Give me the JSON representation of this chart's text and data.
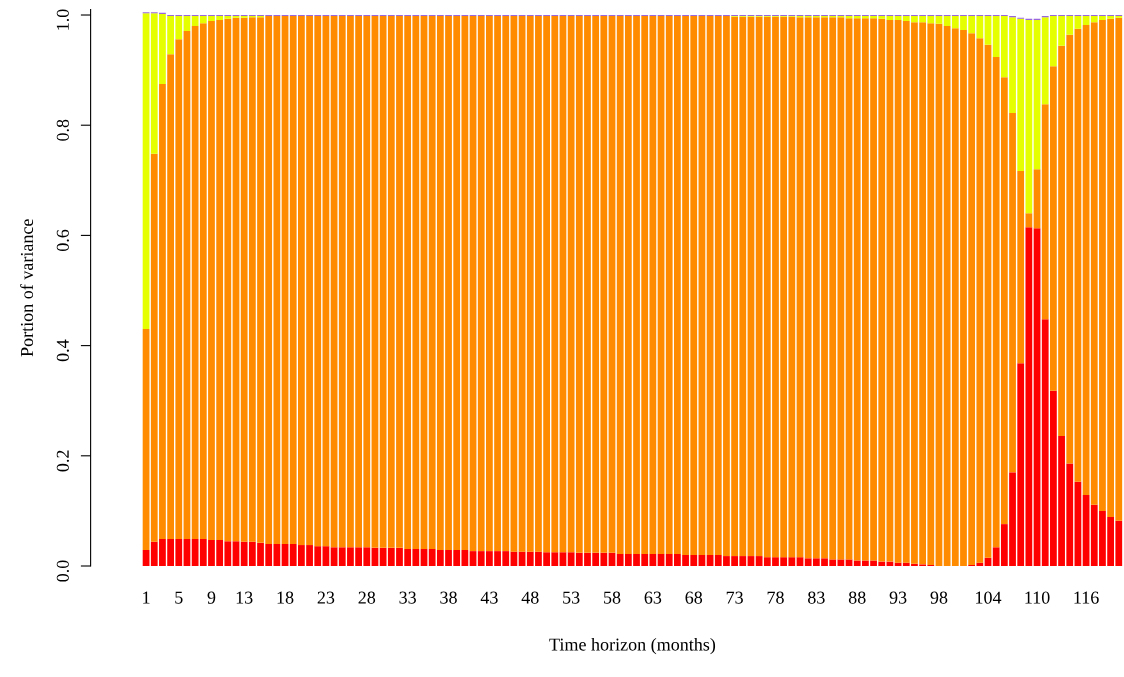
{
  "chart_data": {
    "type": "bar",
    "stacked": true,
    "xlabel": "Time horizon (months)",
    "ylabel": "Portion of variance",
    "categories": [
      "1",
      null,
      null,
      null,
      "5",
      null,
      null,
      null,
      "9",
      null,
      null,
      null,
      "13",
      null,
      null,
      null,
      null,
      "18",
      null,
      null,
      null,
      null,
      "23",
      null,
      null,
      null,
      null,
      "28",
      null,
      null,
      null,
      null,
      "33",
      null,
      null,
      null,
      null,
      "38",
      null,
      null,
      null,
      null,
      "43",
      null,
      null,
      null,
      null,
      "48",
      null,
      null,
      null,
      null,
      "53",
      null,
      null,
      null,
      null,
      "58",
      null,
      null,
      null,
      null,
      "63",
      null,
      null,
      null,
      null,
      "68",
      null,
      null,
      null,
      null,
      "73",
      null,
      null,
      null,
      null,
      "78",
      null,
      null,
      null,
      null,
      "83",
      null,
      null,
      null,
      null,
      "88",
      null,
      null,
      null,
      null,
      "93",
      null,
      null,
      null,
      null,
      "98",
      null,
      null,
      null,
      null,
      null,
      "104",
      null,
      null,
      null,
      null,
      null,
      "110",
      null,
      null,
      null,
      null,
      null,
      "116",
      null,
      null,
      null,
      null
    ],
    "series": [
      {
        "color": "#ff0000",
        "values": [
          0.029,
          0.044,
          0.049,
          0.049,
          0.049,
          0.049,
          0.049,
          0.049,
          0.047,
          0.047,
          0.045,
          0.045,
          0.044,
          0.044,
          0.042,
          0.04,
          0.04,
          0.04,
          0.04,
          0.038,
          0.038,
          0.036,
          0.036,
          0.034,
          0.034,
          0.034,
          0.034,
          0.034,
          0.033,
          0.033,
          0.033,
          0.033,
          0.031,
          0.031,
          0.031,
          0.031,
          0.029,
          0.029,
          0.029,
          0.029,
          0.027,
          0.027,
          0.027,
          0.027,
          0.027,
          0.026,
          0.026,
          0.026,
          0.026,
          0.025,
          0.025,
          0.025,
          0.025,
          0.024,
          0.024,
          0.024,
          0.024,
          0.024,
          0.022,
          0.022,
          0.022,
          0.022,
          0.022,
          0.022,
          0.022,
          0.022,
          0.02,
          0.02,
          0.02,
          0.02,
          0.02,
          0.018,
          0.018,
          0.018,
          0.018,
          0.018,
          0.016,
          0.016,
          0.016,
          0.016,
          0.016,
          0.014,
          0.014,
          0.014,
          0.012,
          0.012,
          0.012,
          0.01,
          0.01,
          0.01,
          0.008,
          0.008,
          0.006,
          0.006,
          0.004,
          0.003,
          0.002,
          0,
          0,
          0,
          0,
          0.002,
          0.006,
          0.015,
          0.034,
          0.076,
          0.17,
          0.368,
          0.615,
          0.613,
          0.448,
          0.318,
          0.236,
          0.186,
          0.153,
          0.129,
          0.111,
          0.1,
          0.089,
          0.082
        ]
      },
      {
        "color": "#ff8c00",
        "values": [
          0.401,
          0.704,
          0.826,
          0.88,
          0.907,
          0.922,
          0.931,
          0.936,
          0.942,
          0.944,
          0.948,
          0.95,
          0.951,
          0.952,
          0.954,
          0.958,
          0.958,
          0.958,
          0.958,
          0.96,
          0.96,
          0.962,
          0.962,
          0.964,
          0.964,
          0.964,
          0.964,
          0.964,
          0.965,
          0.965,
          0.965,
          0.965,
          0.967,
          0.967,
          0.967,
          0.967,
          0.969,
          0.969,
          0.969,
          0.969,
          0.971,
          0.971,
          0.971,
          0.971,
          0.971,
          0.972,
          0.972,
          0.972,
          0.972,
          0.973,
          0.973,
          0.973,
          0.973,
          0.974,
          0.974,
          0.974,
          0.974,
          0.974,
          0.976,
          0.976,
          0.976,
          0.976,
          0.976,
          0.976,
          0.976,
          0.976,
          0.978,
          0.978,
          0.978,
          0.978,
          0.978,
          0.98,
          0.979,
          0.979,
          0.979,
          0.979,
          0.981,
          0.981,
          0.981,
          0.981,
          0.98,
          0.982,
          0.982,
          0.982,
          0.984,
          0.984,
          0.982,
          0.984,
          0.984,
          0.984,
          0.985,
          0.983,
          0.985,
          0.983,
          0.983,
          0.984,
          0.983,
          0.984,
          0.98,
          0.976,
          0.973,
          0.965,
          0.952,
          0.931,
          0.89,
          0.811,
          0.652,
          0.349,
          0.025,
          0.107,
          0.39,
          0.589,
          0.708,
          0.778,
          0.822,
          0.853,
          0.876,
          0.891,
          0.904,
          0.913
        ]
      },
      {
        "color": "#e6ff00",
        "values": [
          0.573,
          0.255,
          0.127,
          0.069,
          0.042,
          0.027,
          0.018,
          0.013,
          0.009,
          0.007,
          0.005,
          0.003,
          0.003,
          0.002,
          0.002,
          0,
          0,
          0,
          0,
          0,
          0,
          0,
          0,
          0,
          0,
          0,
          0,
          0,
          0,
          0,
          0,
          0,
          0,
          0,
          0,
          0,
          0,
          0,
          0,
          0,
          0,
          0,
          0,
          0,
          0,
          0,
          0,
          0,
          0,
          0,
          0,
          0,
          0,
          0,
          0,
          0,
          0,
          0,
          0,
          0,
          0,
          0,
          0,
          0,
          0,
          0,
          0,
          0,
          0,
          0,
          0,
          0,
          0.001,
          0.001,
          0.001,
          0.001,
          0.001,
          0.001,
          0.001,
          0.001,
          0.002,
          0.002,
          0.002,
          0.002,
          0.002,
          0.002,
          0.004,
          0.004,
          0.004,
          0.004,
          0.005,
          0.007,
          0.007,
          0.009,
          0.011,
          0.011,
          0.013,
          0.014,
          0.018,
          0.022,
          0.025,
          0.031,
          0.04,
          0.052,
          0.074,
          0.111,
          0.174,
          0.276,
          0.351,
          0.271,
          0.158,
          0.091,
          0.054,
          0.034,
          0.023,
          0.016,
          0.011,
          0.007,
          0.005,
          0.003
        ]
      },
      {
        "color": "#9966dd",
        "values": [
          0.002,
          0.002,
          0.002,
          0.002,
          0.002,
          0.002,
          0.002,
          0.002,
          0.002,
          0.002,
          0.002,
          0.002,
          0.002,
          0.002,
          0.002,
          0.002,
          0.002,
          0.002,
          0.002,
          0.002,
          0.002,
          0.002,
          0.002,
          0.002,
          0.002,
          0.002,
          0.002,
          0.002,
          0.002,
          0.002,
          0.002,
          0.002,
          0.002,
          0.002,
          0.002,
          0.002,
          0.002,
          0.002,
          0.002,
          0.002,
          0.002,
          0.002,
          0.002,
          0.002,
          0.002,
          0.002,
          0.002,
          0.002,
          0.002,
          0.002,
          0.002,
          0.002,
          0.002,
          0.002,
          0.002,
          0.002,
          0.002,
          0.002,
          0.002,
          0.002,
          0.002,
          0.002,
          0.002,
          0.002,
          0.002,
          0.002,
          0.002,
          0.002,
          0.002,
          0.002,
          0.002,
          0.002,
          0.002,
          0.002,
          0.002,
          0.002,
          0.002,
          0.002,
          0.002,
          0.002,
          0.002,
          0.002,
          0.002,
          0.002,
          0.002,
          0.002,
          0.002,
          0.002,
          0.002,
          0.002,
          0.002,
          0.002,
          0.002,
          0.002,
          0.002,
          0.002,
          0.002,
          0.002,
          0.002,
          0.002,
          0.002,
          0.002,
          0.002,
          0.002,
          0.002,
          0.002,
          0.002,
          0.002,
          0.002,
          0.002,
          0.002,
          0.002,
          0.002,
          0.002,
          0.002,
          0.002,
          0.002,
          0.002,
          0.002,
          0.002
        ]
      }
    ],
    "ylim": [
      0,
      1.01
    ],
    "yticks": [
      {
        "value": 0,
        "label": "0.0"
      },
      {
        "value": 0.2,
        "label": "0.2"
      },
      {
        "value": 0.4,
        "label": "0.4"
      },
      {
        "value": 0.6,
        "label": "0.6"
      },
      {
        "value": 0.8,
        "label": "0.8"
      },
      {
        "value": 1,
        "label": "1.0"
      }
    ],
    "grid": false,
    "legend": false
  }
}
